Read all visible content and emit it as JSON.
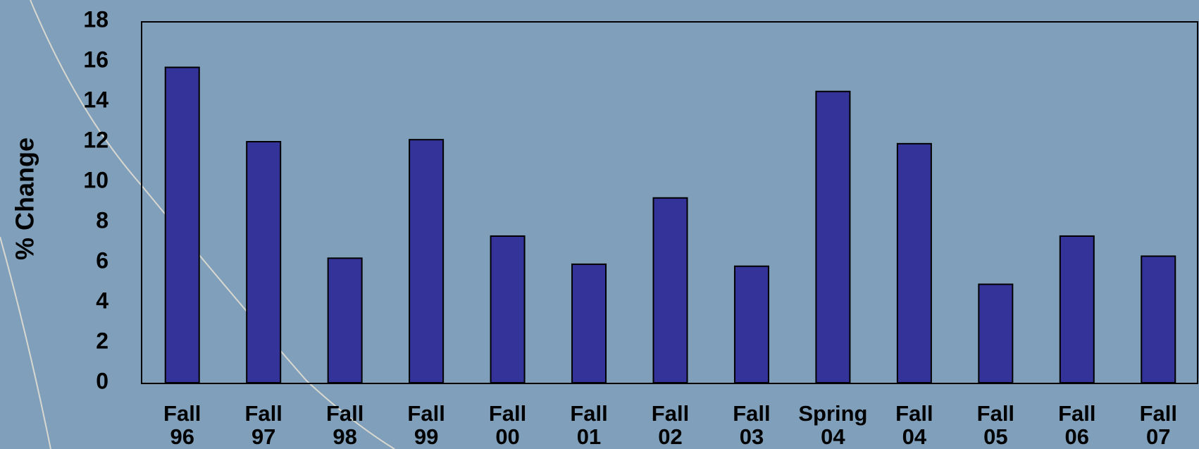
{
  "chart_data": {
    "type": "bar",
    "y_label": "% Change",
    "categories": [
      "Fall 96",
      "Fall 97",
      "Fall 98",
      "Fall 99",
      "Fall 00",
      "Fall 01",
      "Fall 02",
      "Fall 03",
      "Spring 04",
      "Fall 04",
      "Fall 05",
      "Fall 06",
      "Fall 07"
    ],
    "values": [
      15.7,
      12.0,
      6.2,
      12.1,
      7.3,
      5.9,
      9.2,
      5.8,
      14.5,
      11.9,
      4.9,
      7.3,
      6.3
    ],
    "color": "#333399",
    "ylim": [
      0,
      18
    ],
    "yticks": [
      0,
      2,
      4,
      6,
      8,
      10,
      12,
      14,
      16,
      18
    ],
    "grid": false
  }
}
